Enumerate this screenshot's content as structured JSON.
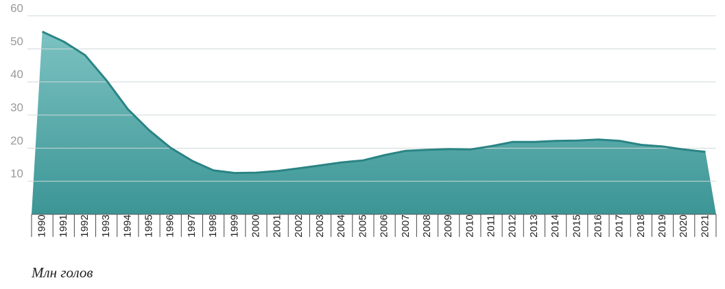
{
  "chart_data": {
    "type": "area",
    "ylabel": "Млн голов",
    "categories": [
      "1990",
      "1991",
      "1992",
      "1993",
      "1994",
      "1995",
      "1996",
      "1997",
      "1998",
      "1999",
      "2000",
      "2001",
      "2002",
      "2003",
      "2004",
      "2005",
      "2006",
      "2007",
      "2008",
      "2009",
      "2010",
      "2011",
      "2012",
      "2013",
      "2014",
      "2015",
      "2016",
      "2017",
      "2018",
      "2019",
      "2020",
      "2021"
    ],
    "values": [
      55.2,
      52.2,
      48.1,
      40.5,
      31.8,
      25.4,
      20.1,
      16.2,
      13.3,
      12.5,
      12.6,
      13.1,
      13.9,
      14.8,
      15.7,
      16.3,
      17.9,
      19.2,
      19.5,
      19.7,
      19.6,
      20.6,
      21.9,
      21.9,
      22.2,
      22.3,
      22.6,
      22.2,
      21.0,
      20.5,
      19.6,
      18.9
    ],
    "color": "#2a8484",
    "ylim": [
      0,
      60
    ],
    "yticks": [
      10,
      20,
      30,
      40,
      50,
      60
    ],
    "grid": true
  }
}
